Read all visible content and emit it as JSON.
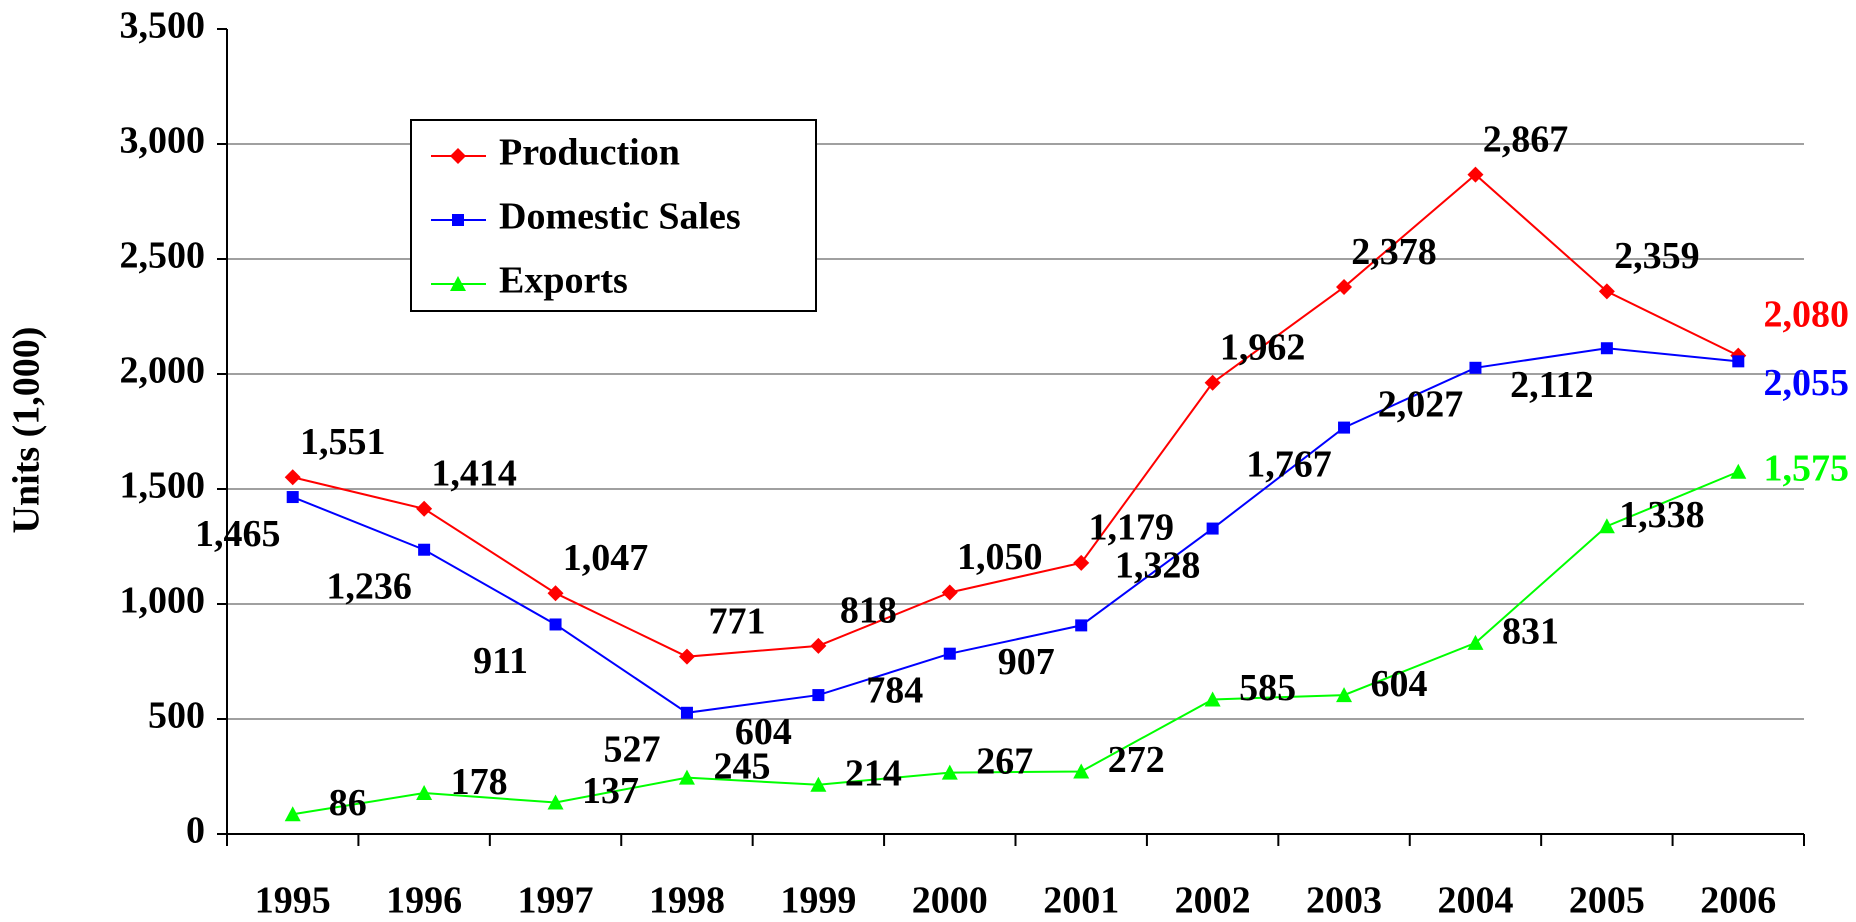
{
  "chart_data": {
    "type": "line",
    "y_label": "Units (1,000)",
    "categories": [
      "1995",
      "1996",
      "1997",
      "1998",
      "1999",
      "2000",
      "2001",
      "2002",
      "2003",
      "2004",
      "2005",
      "2006"
    ],
    "series": [
      {
        "name": "Production",
        "color": "#ff0000",
        "marker": "diamond",
        "values": [
          1551,
          1414,
          1047,
          771,
          818,
          1050,
          1179,
          1962,
          2378,
          2867,
          2359,
          2080
        ],
        "value_labels": [
          "1,551",
          "1,414",
          "1,047",
          "771",
          "818",
          "1,050",
          "1,179",
          "1,962",
          "2,378",
          "2,867",
          "2,359",
          "2,080"
        ]
      },
      {
        "name": "Domestic Sales",
        "color": "#0000ff",
        "marker": "square",
        "values": [
          1465,
          1236,
          911,
          527,
          604,
          784,
          907,
          1328,
          1767,
          2027,
          2112,
          2055
        ],
        "value_labels": [
          "1,465",
          "1,236",
          "911",
          "527",
          "604",
          "784",
          "907",
          "1,328",
          "1,767",
          "2,027",
          "2,112",
          "2,055"
        ]
      },
      {
        "name": "Exports",
        "color": "#00ff00",
        "marker": "triangle",
        "values": [
          86,
          178,
          137,
          245,
          214,
          267,
          272,
          585,
          604,
          831,
          1338,
          1575
        ],
        "value_labels": [
          "86",
          "178",
          "137",
          "245",
          "214",
          "267",
          "272",
          "585",
          "604",
          "831",
          "1,338",
          "1,575"
        ]
      }
    ],
    "ylim": [
      0,
      3500
    ],
    "yticks": [
      0,
      500,
      {
        "value": 1000,
        "label": "1,000"
      },
      {
        "value": 1500,
        "label": "1,500"
      },
      {
        "value": 2000,
        "label": "2,000"
      },
      {
        "value": 2500,
        "label": "2,500"
      },
      {
        "value": 3000,
        "label": "3,000"
      },
      {
        "value": 3500,
        "label": "3,500"
      }
    ],
    "grid": true,
    "legend": "upper left"
  }
}
